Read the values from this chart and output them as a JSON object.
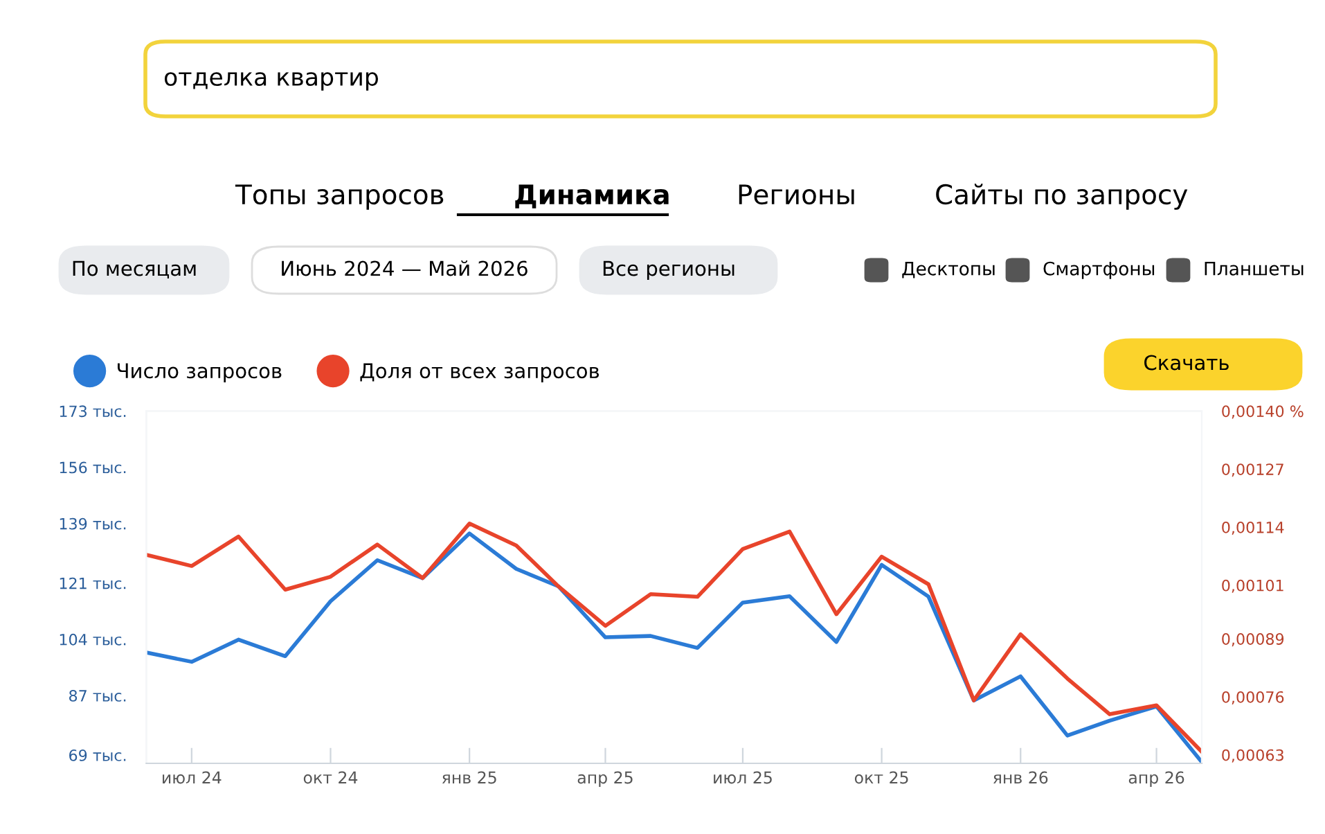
{
  "chart_data": {
    "type": "line",
    "title": "отделка квартир",
    "annotations": [
      "Топы запросов",
      "Динамика",
      "Регионы",
      "Сайты по запросу",
      "По месяцам",
      "Июнь 2024 — Май 2026",
      "Все регионы",
      "Десктопы",
      "Смартфоны",
      "Планшеты",
      "Скачать"
    ],
    "x": [
      "2024-06",
      "2024-07",
      "2024-08",
      "2024-09",
      "2024-10",
      "2024-11",
      "2024-12",
      "2025-01",
      "2025-02",
      "2025-03",
      "2025-04",
      "2025-05",
      "2025-06",
      "2025-07",
      "2025-08",
      "2025-09",
      "2025-10",
      "2025-11",
      "2025-12",
      "2026-01",
      "2026-02",
      "2026-03",
      "2026-04",
      "2026-05"
    ],
    "series": [
      {
        "name": "Число запросов",
        "color": "#2b7bd6",
        "values": [
          100.0,
          97.2,
          103.9,
          98.9,
          115.5,
          127.9,
          122.5,
          136.0,
          125.3,
          120.0,
          104.6,
          105.0,
          101.4,
          115.1,
          117.0,
          103.2,
          126.5,
          116.9,
          85.5,
          92.8,
          74.9,
          79.4,
          83.7,
          66.9
        ]
      },
      {
        "name": "Доля от всех запросов",
        "color": "#e8442b",
        "axis": "y2",
        "values": [
          0.001078,
          0.001053,
          0.001119,
          0.001,
          0.001029,
          0.001101,
          0.001026,
          0.001148,
          0.001099,
          0.001007,
          0.000919,
          0.00099,
          0.000984,
          0.001091,
          0.00113,
          0.000945,
          0.001074,
          0.001012,
          0.000752,
          0.0009,
          0.000801,
          0.000721,
          0.000741,
          0.000637
        ]
      }
    ],
    "xlim": [
      "2024-06",
      "2026-05"
    ],
    "xticks": [
      {
        "value": "2024-07",
        "label": "июл 24"
      },
      {
        "value": "2024-10",
        "label": "окт 24"
      },
      {
        "value": "2025-01",
        "label": "янв 25"
      },
      {
        "value": "2025-04",
        "label": "апр 25"
      },
      {
        "value": "2025-07",
        "label": "июл 25"
      },
      {
        "value": "2025-10",
        "label": "окт 25"
      },
      {
        "value": "2026-01",
        "label": "янв 26"
      },
      {
        "value": "2026-04",
        "label": "апр 26"
      }
    ],
    "ylim": [
      66.5,
      173
    ],
    "yticks": [
      {
        "value": 69,
        "label": "69 тыс."
      },
      {
        "value": 87,
        "label": "87 тыс."
      },
      {
        "value": 104,
        "label": "104 тыс."
      },
      {
        "value": 121,
        "label": "121 тыс."
      },
      {
        "value": 139,
        "label": "139 тыс."
      },
      {
        "value": 156,
        "label": "156 тыс."
      },
      {
        "value": 173,
        "label": "173 тыс."
      }
    ],
    "y2lim": [
      0.000611,
      0.0014
    ],
    "y2ticks": [
      {
        "value": 0.00063,
        "label": "0,00063"
      },
      {
        "value": 0.00076,
        "label": "0,00076"
      },
      {
        "value": 0.00089,
        "label": "0,00089"
      },
      {
        "value": 0.00101,
        "label": "0,00101"
      },
      {
        "value": 0.00114,
        "label": "0,00114"
      },
      {
        "value": 0.00127,
        "label": "0,00127"
      },
      {
        "value": 0.0014,
        "label": "0,00140 %"
      }
    ],
    "legend": "top left",
    "marker": "none",
    "line_style": "solid"
  }
}
